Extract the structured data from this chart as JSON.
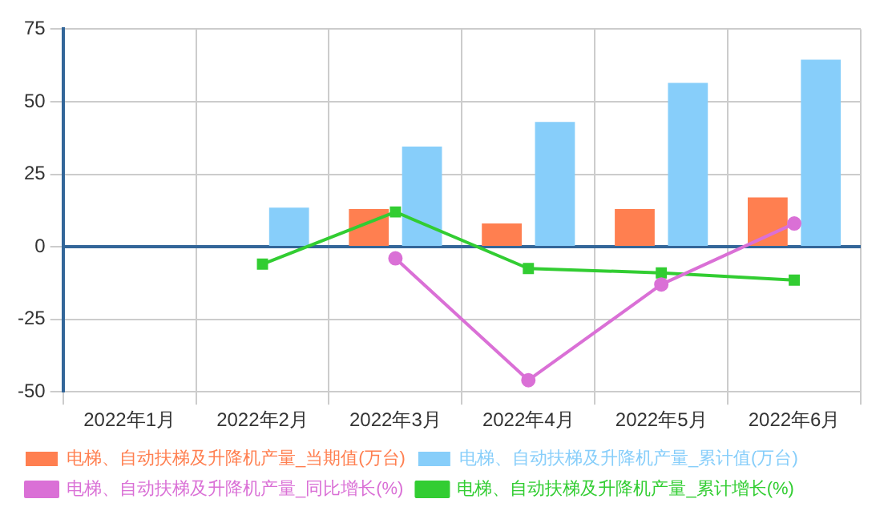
{
  "chart_data": {
    "type": "bar",
    "categories": [
      "2022年1月",
      "2022年2月",
      "2022年3月",
      "2022年4月",
      "2022年5月",
      "2022年6月"
    ],
    "series": [
      {
        "name": "电梯、自动扶梯及升降机产量_当期值(万台)",
        "color": "#ff7f50",
        "values": [
          null,
          null,
          13,
          8,
          13,
          17
        ]
      },
      {
        "name": "电梯、自动扶梯及升降机产量_累计值(万台)",
        "color": "#87cefa",
        "values": [
          null,
          13.5,
          34.5,
          43,
          56.5,
          64.5
        ]
      },
      {
        "name": "电梯、自动扶梯及升降机产量_同比增长(%)",
        "type": "line",
        "marker": "circle",
        "color": "#da70d6",
        "values": [
          null,
          null,
          -4,
          -46,
          -13,
          8
        ]
      },
      {
        "name": "电梯、自动扶梯及升降机产量_累计增长(%)",
        "type": "line",
        "marker": "square",
        "color": "#32cd32",
        "values": [
          null,
          -6,
          12,
          -7.5,
          -9,
          -11.5
        ]
      }
    ],
    "ref_lines": [
      {
        "axis": "y",
        "value": 0,
        "color": "#336699"
      }
    ],
    "ylim": [
      -50,
      75
    ],
    "yticks": [
      -50,
      -25,
      0,
      25,
      50,
      75
    ],
    "grid": true,
    "legend": "bottom"
  }
}
